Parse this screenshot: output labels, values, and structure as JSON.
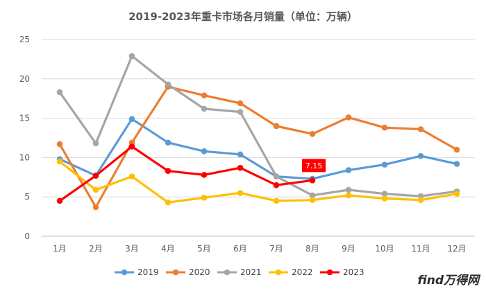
{
  "chart_data": {
    "type": "line",
    "title": "2019-2023年重卡市场各月销量（单位：万辆）",
    "xlabel": "",
    "ylabel": "",
    "categories": [
      "1月",
      "2月",
      "3月",
      "4月",
      "5月",
      "6月",
      "7月",
      "8月",
      "9月",
      "10月",
      "11月",
      "12月"
    ],
    "ylim": [
      0,
      25
    ],
    "yticks": [
      0,
      5,
      10,
      15,
      20,
      25
    ],
    "grid": true,
    "legend": "bottom",
    "series": [
      {
        "name": "2019",
        "color": "#5b9bd5",
        "values": [
          9.8,
          7.7,
          14.9,
          11.9,
          10.8,
          10.4,
          7.6,
          7.3,
          8.4,
          9.1,
          10.2,
          9.2
        ]
      },
      {
        "name": "2020",
        "color": "#ed7d31",
        "values": [
          11.7,
          3.7,
          11.9,
          19.0,
          17.9,
          16.9,
          14.0,
          13.0,
          15.1,
          13.8,
          13.6,
          11.0
        ]
      },
      {
        "name": "2021",
        "color": "#a5a5a5",
        "values": [
          18.3,
          11.8,
          22.9,
          19.3,
          16.2,
          15.8,
          7.6,
          5.2,
          5.9,
          5.4,
          5.1,
          5.7
        ]
      },
      {
        "name": "2022",
        "color": "#ffc000",
        "values": [
          9.5,
          5.9,
          7.6,
          4.3,
          4.9,
          5.5,
          4.5,
          4.6,
          5.2,
          4.8,
          4.6,
          5.4
        ]
      },
      {
        "name": "2023",
        "color": "#ff0000",
        "values": [
          4.5,
          7.7,
          11.4,
          8.3,
          7.8,
          8.7,
          6.5,
          7.1,
          null,
          null,
          null,
          null
        ]
      }
    ],
    "annotations": [
      {
        "text": "7.15",
        "series": "2023",
        "category": "8月",
        "background": "#ff0000"
      }
    ]
  },
  "watermark": {
    "text": "find万得网"
  }
}
